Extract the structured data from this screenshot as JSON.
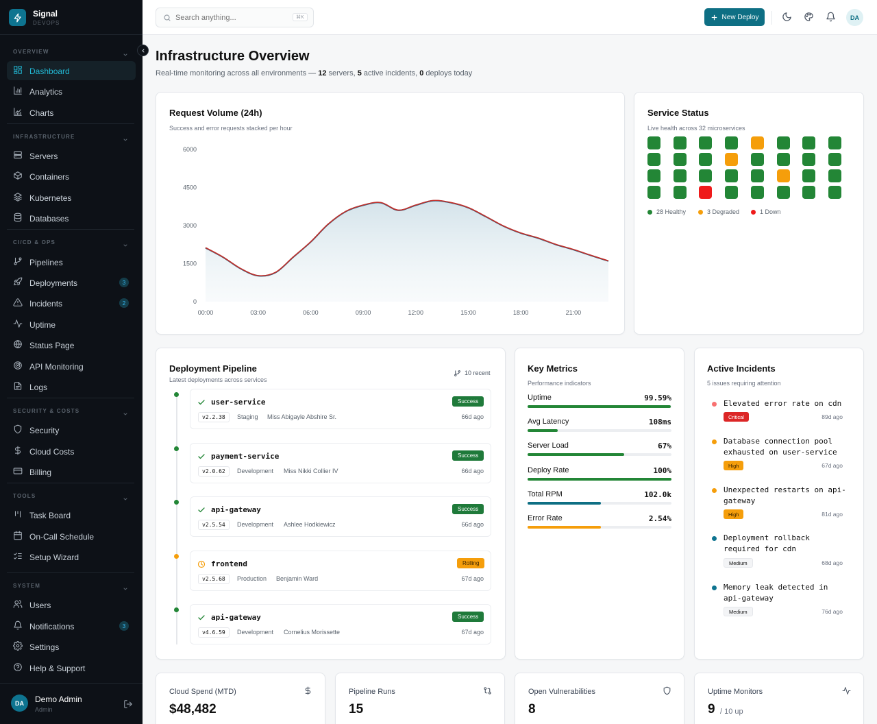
{
  "brand": {
    "name": "Signal",
    "sub": "DEVOPS"
  },
  "sidebar": {
    "sections": [
      {
        "label": "OVERVIEW",
        "items": [
          {
            "label": "Dashboard",
            "icon": "grid-icon",
            "active": true
          },
          {
            "label": "Analytics",
            "icon": "analytics-icon"
          },
          {
            "label": "Charts",
            "icon": "chart-icon"
          }
        ]
      },
      {
        "label": "INFRASTRUCTURE",
        "items": [
          {
            "label": "Servers",
            "icon": "server-icon"
          },
          {
            "label": "Containers",
            "icon": "box-icon"
          },
          {
            "label": "Kubernetes",
            "icon": "layers-icon"
          },
          {
            "label": "Databases",
            "icon": "database-icon"
          }
        ]
      },
      {
        "label": "CI/CD & OPS",
        "items": [
          {
            "label": "Pipelines",
            "icon": "git-branch-icon"
          },
          {
            "label": "Deployments",
            "icon": "rocket-icon",
            "badge": "3"
          },
          {
            "label": "Incidents",
            "icon": "alert-triangle-icon",
            "badge": "2"
          },
          {
            "label": "Uptime",
            "icon": "activity-icon"
          },
          {
            "label": "Status Page",
            "icon": "globe-icon"
          },
          {
            "label": "API Monitoring",
            "icon": "radar-icon"
          },
          {
            "label": "Logs",
            "icon": "log-icon"
          }
        ]
      },
      {
        "label": "SECURITY & COSTS",
        "items": [
          {
            "label": "Security",
            "icon": "shield-icon"
          },
          {
            "label": "Cloud Costs",
            "icon": "dollar-icon"
          },
          {
            "label": "Billing",
            "icon": "credit-card-icon"
          }
        ]
      },
      {
        "label": "TOOLS",
        "items": [
          {
            "label": "Task Board",
            "icon": "kanban-icon"
          },
          {
            "label": "On-Call Schedule",
            "icon": "calendar-icon"
          },
          {
            "label": "Setup Wizard",
            "icon": "list-checks-icon"
          }
        ]
      },
      {
        "label": "SYSTEM",
        "items": [
          {
            "label": "Users",
            "icon": "users-icon"
          },
          {
            "label": "Notifications",
            "icon": "bell-icon",
            "badge": "3"
          },
          {
            "label": "Settings",
            "icon": "gear-icon"
          },
          {
            "label": "Help & Support",
            "icon": "help-icon"
          }
        ]
      }
    ],
    "user": {
      "name": "Demo Admin",
      "role": "Admin",
      "initials": "DA"
    }
  },
  "topbar": {
    "search_placeholder": "Search anything...",
    "shortcut": "⌘K",
    "deploy_label": "New Deploy",
    "avatar": "DA"
  },
  "page": {
    "title": "Infrastructure Overview",
    "sub_prefix": "Real-time monitoring across all environments — ",
    "servers": "12",
    "servers_label": " servers, ",
    "incidents": "5",
    "incidents_label": " active incidents, ",
    "deploys": "0",
    "deploys_label": " deploys today"
  },
  "request_card": {
    "title": "Request Volume (24h)",
    "subtitle": "Success and error requests stacked per hour"
  },
  "chart_data": {
    "type": "area",
    "title": "Request Volume (24h)",
    "x_ticks": [
      "00:00",
      "03:00",
      "06:00",
      "09:00",
      "12:00",
      "15:00",
      "18:00",
      "21:00"
    ],
    "y_ticks": [
      "6000",
      "4500",
      "3000",
      "1500",
      "0"
    ],
    "ylim": [
      0,
      6000
    ],
    "x_hours": [
      0,
      1,
      2,
      3,
      4,
      5,
      6,
      7,
      8,
      9,
      10,
      11,
      12,
      13,
      14,
      15,
      16,
      17,
      18,
      19,
      20,
      21,
      22,
      23
    ],
    "series": [
      {
        "values": [
          2120,
          1750,
          1300,
          1020,
          1150,
          1750,
          2350,
          3050,
          3550,
          3800,
          3900,
          3600,
          3800,
          3980,
          3900,
          3700,
          3350,
          2980,
          2700,
          2500,
          2250,
          2050,
          1820,
          1600
        ],
        "color": "#2a5d7a"
      },
      {
        "values": [
          2130,
          1760,
          1310,
          1030,
          1160,
          1760,
          2360,
          3060,
          3560,
          3810,
          3910,
          3610,
          3810,
          3990,
          3910,
          3710,
          3360,
          2990,
          2710,
          2510,
          2260,
          2060,
          1830,
          1610
        ],
        "color": "#c4302b"
      }
    ],
    "grid": false,
    "legend": "none"
  },
  "service_status": {
    "title": "Service Status",
    "subtitle": "Live health across 32 microservices",
    "cells": [
      "healthy",
      "healthy",
      "healthy",
      "healthy",
      "degraded",
      "healthy",
      "healthy",
      "healthy",
      "healthy",
      "healthy",
      "healthy",
      "degraded",
      "healthy",
      "healthy",
      "healthy",
      "healthy",
      "healthy",
      "healthy",
      "healthy",
      "healthy",
      "healthy",
      "degraded",
      "healthy",
      "healthy",
      "healthy",
      "healthy",
      "down",
      "healthy",
      "healthy",
      "healthy",
      "healthy",
      "healthy"
    ],
    "colors": {
      "healthy": "#238636",
      "degraded": "#f59e0b",
      "down": "#ef1a1a"
    },
    "legend": [
      {
        "label": "28 Healthy",
        "color": "#238636"
      },
      {
        "label": "3 Degraded",
        "color": "#f59e0b"
      },
      {
        "label": "1 Down",
        "color": "#ef1a1a"
      }
    ]
  },
  "pipeline": {
    "title": "Deployment Pipeline",
    "subtitle": "Latest deployments across services",
    "recent": "10 recent",
    "items": [
      {
        "service": "user-service",
        "status": "Success",
        "version": "v2.2.38",
        "env": "Staging",
        "author": "Miss Abigayle Abshire Sr.",
        "age": "66d ago"
      },
      {
        "service": "payment-service",
        "status": "Success",
        "version": "v2.0.62",
        "env": "Development",
        "author": "Miss Nikki Collier IV",
        "age": "66d ago"
      },
      {
        "service": "api-gateway",
        "status": "Success",
        "version": "v2.5.54",
        "env": "Development",
        "author": "Ashlee Hodkiewicz",
        "age": "66d ago"
      },
      {
        "service": "frontend",
        "status": "Rolling",
        "version": "v2.5.68",
        "env": "Production",
        "author": "Benjamin Ward",
        "age": "67d ago"
      },
      {
        "service": "api-gateway",
        "status": "Success",
        "version": "v4.6.59",
        "env": "Development",
        "author": "Cornelius Morissette",
        "age": "67d ago"
      }
    ]
  },
  "metrics": {
    "title": "Key Metrics",
    "subtitle": "Performance indicators",
    "items": [
      {
        "label": "Uptime",
        "value": "99.59%",
        "fill": 0.9959,
        "color": "#238636"
      },
      {
        "label": "Avg Latency",
        "value": "108ms",
        "fill": 0.21,
        "color": "#238636"
      },
      {
        "label": "Server Load",
        "value": "67%",
        "fill": 0.67,
        "color": "#238636"
      },
      {
        "label": "Deploy Rate",
        "value": "100%",
        "fill": 1.0,
        "color": "#238636"
      },
      {
        "label": "Total RPM",
        "value": "102.0k",
        "fill": 0.51,
        "color": "#0e6f84"
      },
      {
        "label": "Error Rate",
        "value": "2.54%",
        "fill": 0.51,
        "color": "#f59e0b"
      }
    ]
  },
  "incidents": {
    "title": "Active Incidents",
    "subtitle": "5 issues requiring attention",
    "items": [
      {
        "title": "Elevated error rate on cdn",
        "severity": "Critical",
        "age": "89d ago",
        "dot": "#f87171"
      },
      {
        "title": "Database connection pool exhausted on user-service",
        "severity": "High",
        "age": "67d ago",
        "dot": "#f59e0b"
      },
      {
        "title": "Unexpected restarts on api-gateway",
        "severity": "High",
        "age": "81d ago",
        "dot": "#f59e0b"
      },
      {
        "title": "Deployment rollback required for cdn",
        "severity": "Medium",
        "age": "68d ago",
        "dot": "#0e7490"
      },
      {
        "title": "Memory leak detected in api-gateway",
        "severity": "Medium",
        "age": "76d ago",
        "dot": "#0e7490"
      }
    ]
  },
  "stats": [
    {
      "title": "Cloud Spend (MTD)",
      "value": "$48,482",
      "icon": "dollar-icon"
    },
    {
      "title": "Pipeline Runs",
      "value": "15",
      "icon": "git-compare-icon"
    },
    {
      "title": "Open Vulnerabilities",
      "value": "8",
      "icon": "shield-icon"
    },
    {
      "title": "Uptime Monitors",
      "value": "9",
      "suffix": "/ 10 up",
      "icon": "activity-icon"
    }
  ]
}
